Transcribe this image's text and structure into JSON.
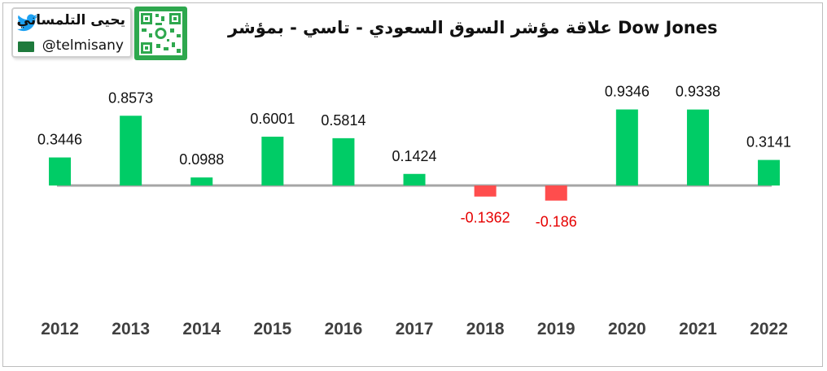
{
  "badge": {
    "name": "يحيى التلمساني",
    "handle": "@telmisany"
  },
  "icons": [
    "twitter-icon",
    "saudi-flag-icon",
    "qr-code-icon"
  ],
  "colors": {
    "positive": "#00cc66",
    "negative": "#ff4d4d",
    "negative_label": "#e60000",
    "axis": "#a6a6a6",
    "qr": "#2ea84e"
  },
  "chart_data": {
    "type": "bar",
    "title": "علاقة مؤشر السوق السعودي - تاسي - بمؤشر  Dow Jones",
    "categories": [
      "2012",
      "2013",
      "2014",
      "2015",
      "2016",
      "2017",
      "2018",
      "2019",
      "2020",
      "2021",
      "2022"
    ],
    "values": [
      0.3446,
      0.8573,
      0.0988,
      0.6001,
      0.5814,
      0.1424,
      -0.1362,
      -0.186,
      0.9346,
      0.9338,
      0.3141
    ],
    "value_labels": [
      "0.3446",
      "0.8573",
      "0.0988",
      "0.6001",
      "0.5814",
      "0.1424",
      "-0.1362",
      "-0.186",
      "0.9346",
      "0.9338",
      "0.3141"
    ],
    "data_labels": true,
    "grid": false,
    "legend": "none"
  }
}
